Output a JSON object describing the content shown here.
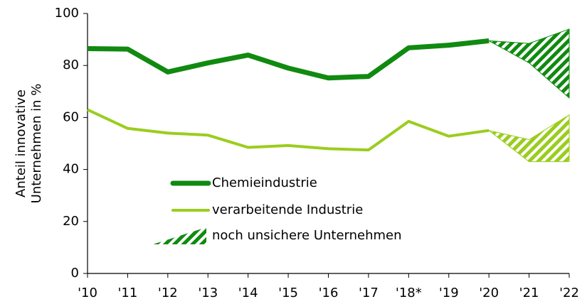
{
  "chart_data": {
    "type": "line",
    "categories": [
      "'10",
      "'11",
      "'12",
      "'13",
      "'14",
      "'15",
      "'16",
      "'17",
      "'18*",
      "'19",
      "'20",
      "'21",
      "'22"
    ],
    "ylabel": [
      "Anteil innovative",
      "Unternehmen in %"
    ],
    "ylim": [
      0,
      100
    ],
    "yticks": [
      0,
      20,
      40,
      60,
      80,
      100
    ],
    "series": [
      {
        "name": "Chemieindustrie",
        "color": "#108a10",
        "values": [
          86.5,
          86.3,
          77.5,
          81,
          84,
          79,
          75.2,
          75.8,
          86.8,
          87.8,
          89.5,
          null,
          null
        ],
        "range_low": [
          null,
          null,
          null,
          null,
          null,
          null,
          null,
          null,
          null,
          null,
          89.5,
          81,
          67.5
        ],
        "range_high": [
          null,
          null,
          null,
          null,
          null,
          null,
          null,
          null,
          null,
          null,
          89.5,
          88.5,
          94
        ]
      },
      {
        "name": "verarbeitende Industrie",
        "color": "#9acd1e",
        "values": [
          63,
          55.8,
          54,
          53.2,
          48.5,
          49.2,
          48,
          47.5,
          58.5,
          52.8,
          55,
          null,
          null
        ],
        "range_low": [
          null,
          null,
          null,
          null,
          null,
          null,
          null,
          null,
          null,
          null,
          55,
          43,
          43
        ],
        "range_high": [
          null,
          null,
          null,
          null,
          null,
          null,
          null,
          null,
          null,
          null,
          55,
          51.5,
          61
        ]
      }
    ],
    "range_legend": "noch unsichere Unternehmen"
  }
}
